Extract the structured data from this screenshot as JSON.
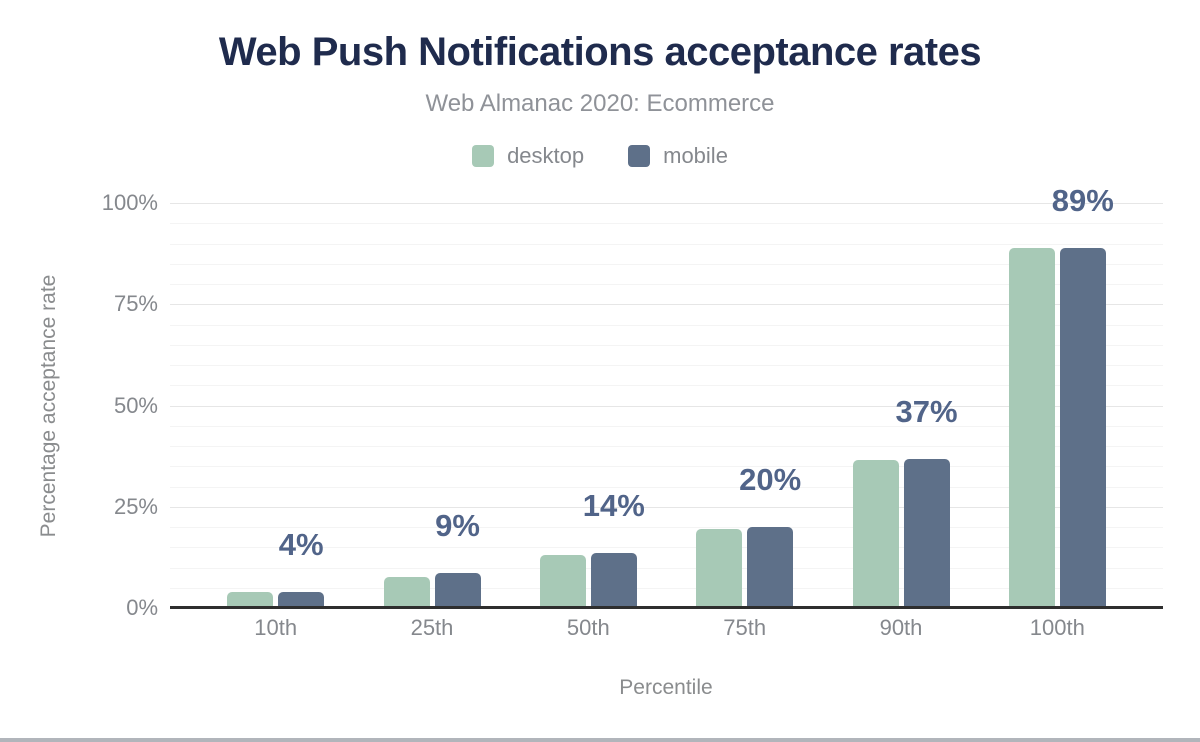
{
  "header": {
    "title": "Web Push Notifications acceptance rates",
    "subtitle": "Web Almanac 2020: Ecommerce"
  },
  "colors": {
    "title": "#1f2b4d",
    "subtitle": "#8f9298",
    "axis_text": "#85888d",
    "desktop": "#a7c9b6",
    "mobile": "#5e7089",
    "bar_label": "#516489",
    "baseline": "#2e2e2e",
    "footer_strip": "#b1b5bb"
  },
  "chart_data": {
    "type": "bar",
    "title": "Web Push Notifications acceptance rates",
    "subtitle": "Web Almanac 2020: Ecommerce",
    "categories": [
      "10th",
      "25th",
      "50th",
      "75th",
      "90th",
      "100th"
    ],
    "series": [
      {
        "name": "desktop",
        "color": "#a7c9b6",
        "values": [
          3.9,
          7.7,
          13.1,
          19.6,
          36.6,
          88.8
        ]
      },
      {
        "name": "mobile",
        "color": "#5e7089",
        "values": [
          4.0,
          8.7,
          13.6,
          20.0,
          36.8,
          88.9
        ]
      }
    ],
    "bar_labels": [
      "4%",
      "9%",
      "14%",
      "20%",
      "37%",
      "89%"
    ],
    "bar_labels_anchor_series": "mobile",
    "xlabel": "Percentile",
    "ylabel": "Percentage acceptance rate",
    "ylim": [
      0,
      100
    ],
    "yticks": [
      {
        "label": "0%",
        "value": 0
      },
      {
        "label": "25%",
        "value": 25
      },
      {
        "label": "50%",
        "value": 50
      },
      {
        "label": "75%",
        "value": 75
      },
      {
        "label": "100%",
        "value": 100
      }
    ],
    "grid": "horizontal, minor every 5%, major every 25%",
    "legend_position": "top-center"
  }
}
